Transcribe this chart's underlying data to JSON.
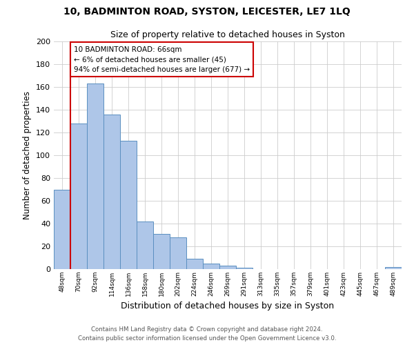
{
  "title1": "10, BADMINTON ROAD, SYSTON, LEICESTER, LE7 1LQ",
  "title2": "Size of property relative to detached houses in Syston",
  "xlabel": "Distribution of detached houses by size in Syston",
  "ylabel": "Number of detached properties",
  "bin_labels": [
    "48sqm",
    "70sqm",
    "92sqm",
    "114sqm",
    "136sqm",
    "158sqm",
    "180sqm",
    "202sqm",
    "224sqm",
    "246sqm",
    "269sqm",
    "291sqm",
    "313sqm",
    "335sqm",
    "357sqm",
    "379sqm",
    "401sqm",
    "423sqm",
    "445sqm",
    "467sqm",
    "489sqm"
  ],
  "bar_heights": [
    70,
    128,
    163,
    136,
    113,
    42,
    31,
    28,
    9,
    5,
    3,
    1,
    0,
    0,
    0,
    0,
    0,
    0,
    0,
    0,
    2
  ],
  "bar_color": "#aec6e8",
  "bar_edge_color": "#5a8fc0",
  "ylim": [
    0,
    200
  ],
  "yticks": [
    0,
    20,
    40,
    60,
    80,
    100,
    120,
    140,
    160,
    180,
    200
  ],
  "vline_x": 1,
  "vline_color": "#cc0000",
  "annotation_title": "10 BADMINTON ROAD: 66sqm",
  "annotation_line1": "← 6% of detached houses are smaller (45)",
  "annotation_line2": "94% of semi-detached houses are larger (677) →",
  "annotation_box_color": "#ffffff",
  "annotation_box_edge": "#cc0000",
  "footer1": "Contains HM Land Registry data © Crown copyright and database right 2024.",
  "footer2": "Contains public sector information licensed under the Open Government Licence v3.0.",
  "background_color": "#ffffff",
  "grid_color": "#cccccc"
}
